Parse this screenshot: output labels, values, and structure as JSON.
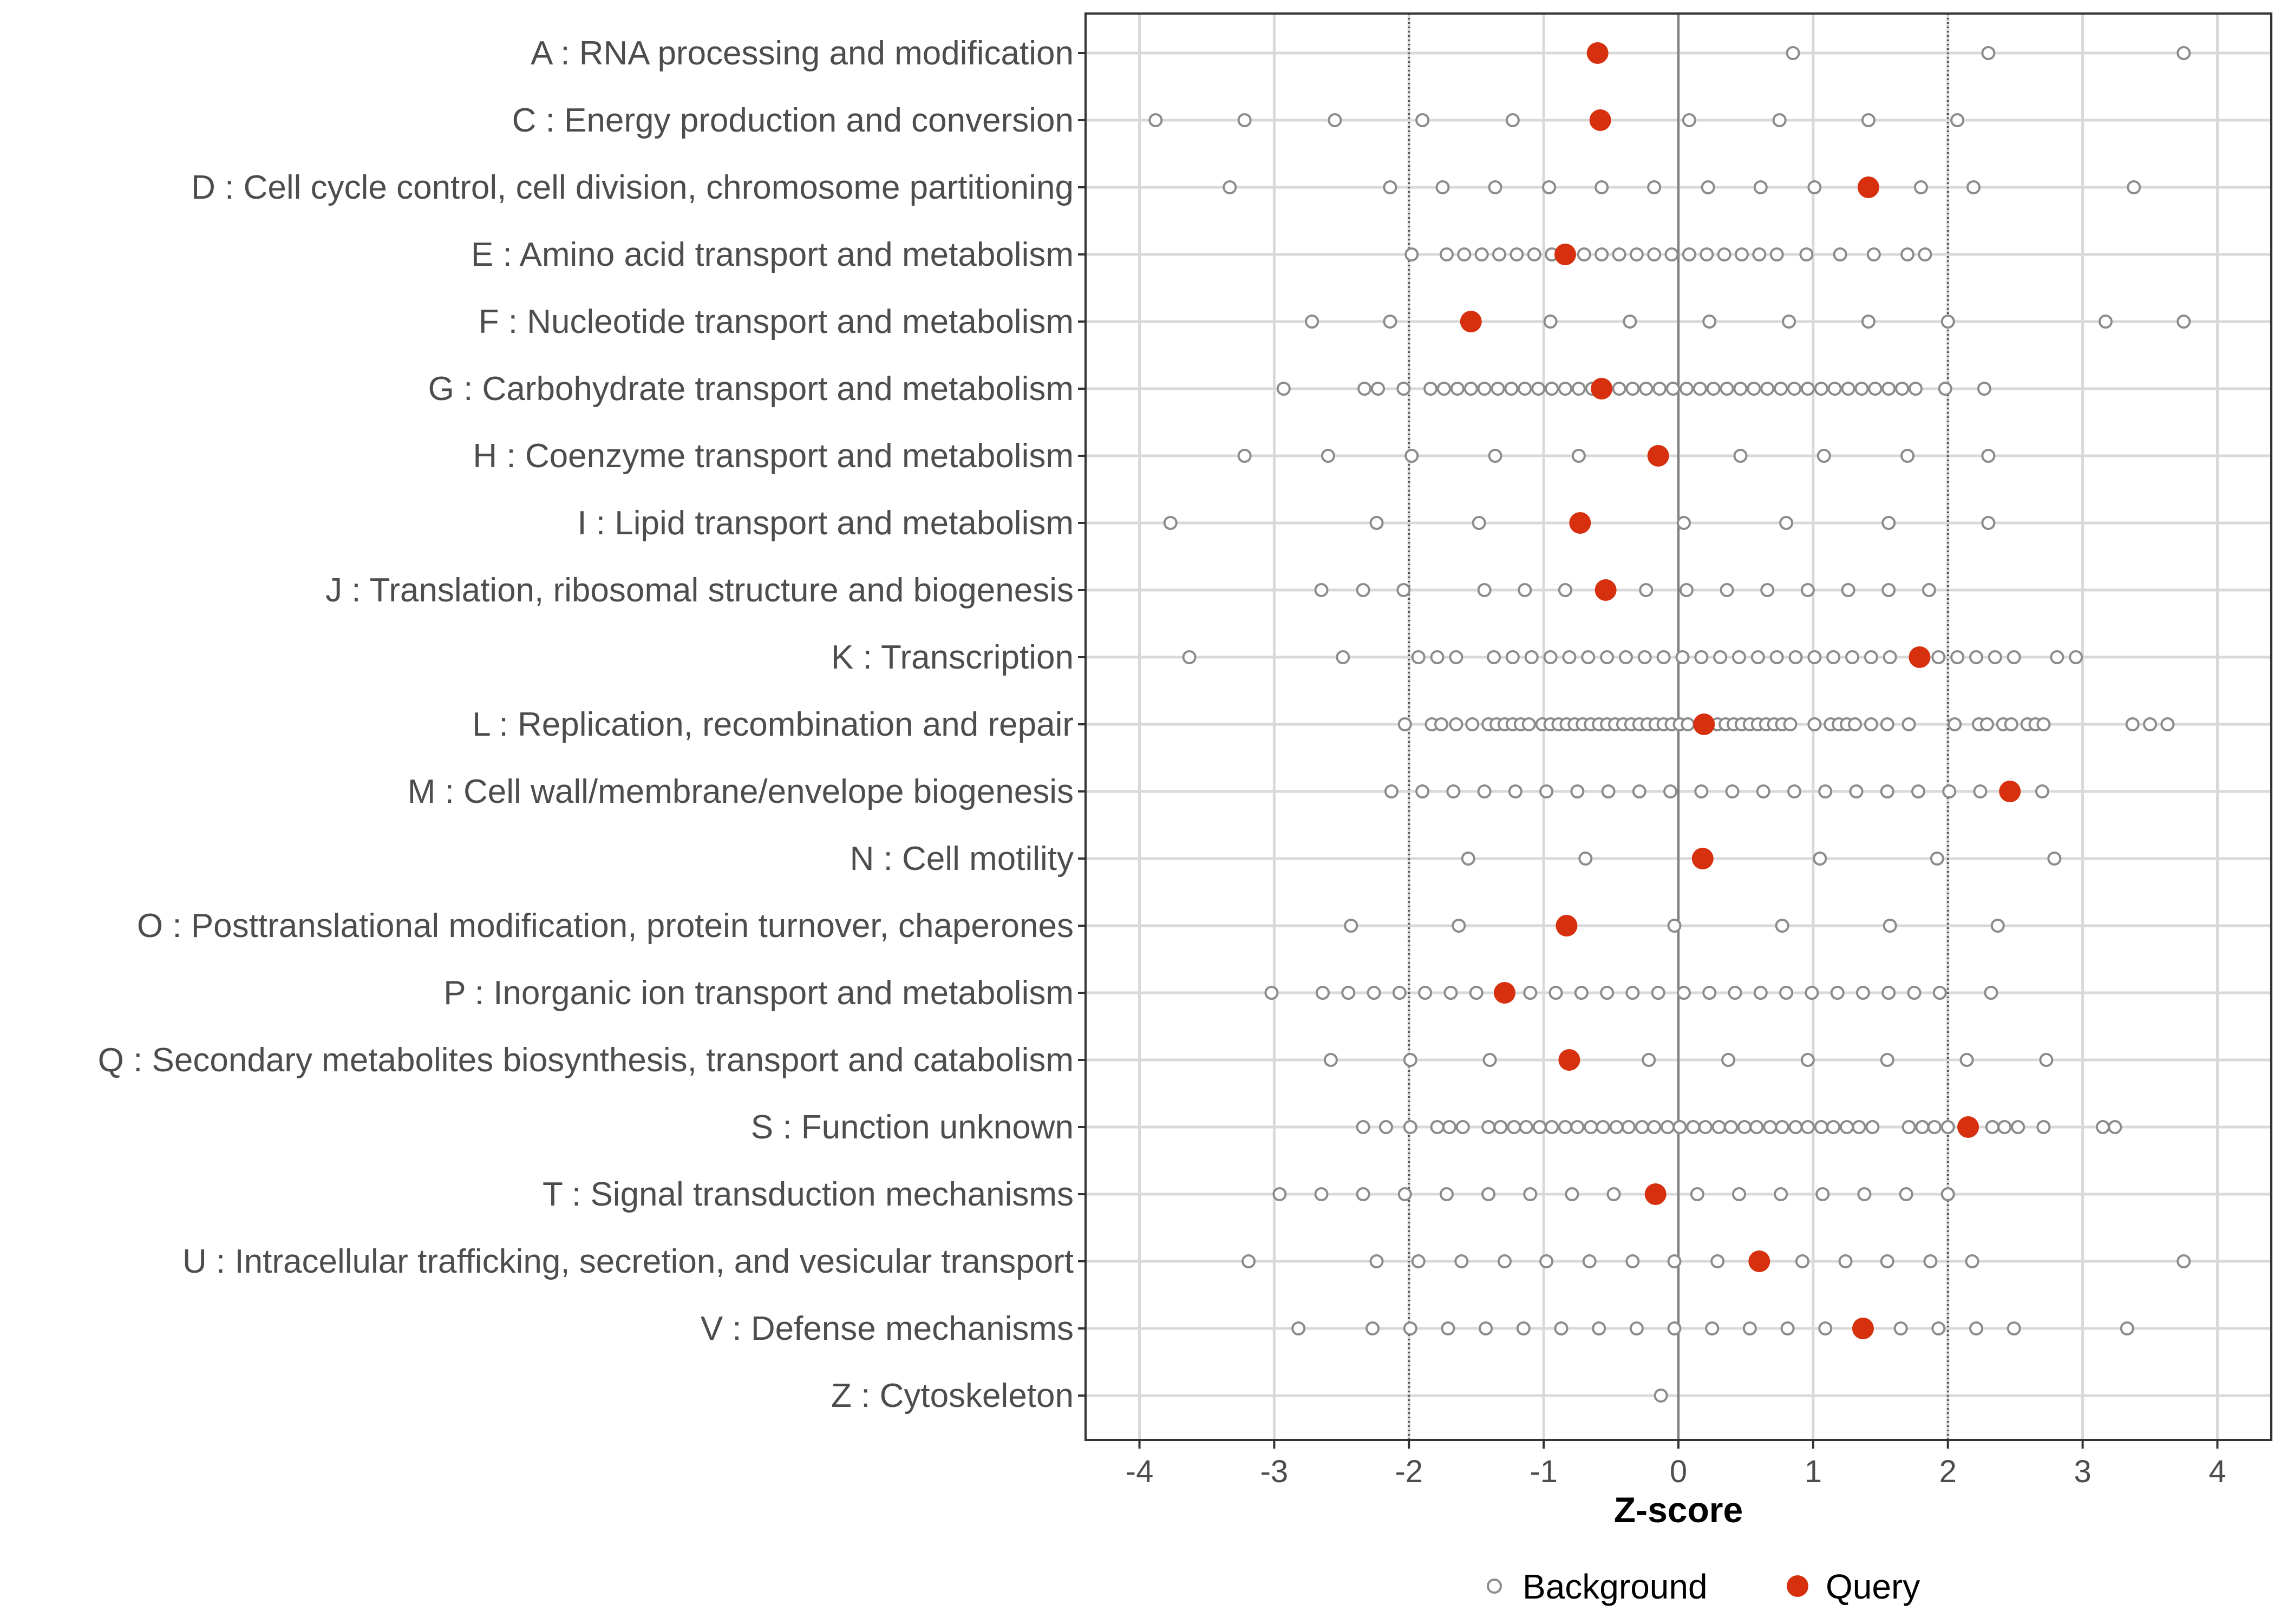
{
  "colors": {
    "background_point": "#8c8c8c",
    "query_point": "#d7300f",
    "grid": "#d9d9d9",
    "panel_border": "#333333",
    "zero_line": "#7f7f7f",
    "threshold_line": "#555555"
  },
  "chart_data": {
    "type": "scatter",
    "title": "",
    "xlabel": "Z-score",
    "ylabel": "",
    "xlim": [
      -4.4,
      4.4
    ],
    "x_ticks": [
      -4,
      -3,
      -2,
      -1,
      0,
      1,
      2,
      3,
      4
    ],
    "x_tick_labels": [
      "-4",
      "-3",
      "-2",
      "-1",
      "0",
      "1",
      "2",
      "3",
      "4"
    ],
    "reference_lines": {
      "solid": [
        0
      ],
      "dotted": [
        -2,
        2
      ]
    },
    "grid": true,
    "legend": {
      "position": "bottom",
      "entries": [
        {
          "name": "Background",
          "marker": "open-circle"
        },
        {
          "name": "Query",
          "marker": "filled-circle"
        }
      ]
    },
    "categories": [
      {
        "label": "A : RNA processing and modification",
        "query": -0.6,
        "background": [
          0.85,
          2.3,
          3.75
        ]
      },
      {
        "label": "C : Energy production and conversion",
        "query": -0.58,
        "background": [
          -3.88,
          -3.22,
          -2.55,
          -1.9,
          -1.23,
          0.08,
          0.75,
          1.41,
          2.07
        ]
      },
      {
        "label": "D : Cell cycle control, cell division, chromosome partitioning",
        "query": 1.41,
        "background": [
          -3.33,
          -2.14,
          -1.75,
          -1.36,
          -0.96,
          -0.57,
          -0.18,
          0.22,
          0.61,
          1.01,
          1.8,
          2.19,
          3.38
        ]
      },
      {
        "label": "E : Amino acid transport and metabolism",
        "query": -0.84,
        "background": [
          -1.98,
          -1.72,
          -1.59,
          -1.46,
          -1.33,
          -1.2,
          -1.07,
          -0.94,
          -0.7,
          -0.57,
          -0.44,
          -0.31,
          -0.18,
          -0.05,
          0.08,
          0.21,
          0.34,
          0.47,
          0.6,
          0.73,
          0.95,
          1.2,
          1.45,
          1.7,
          1.83
        ]
      },
      {
        "label": "F : Nucleotide transport and metabolism",
        "query": -1.54,
        "background": [
          -2.72,
          -2.14,
          -0.95,
          -0.36,
          0.23,
          0.82,
          1.41,
          2.0,
          3.17,
          3.75
        ]
      },
      {
        "label": "G : Carbohydrate transport and metabolism",
        "query": -0.57,
        "background": [
          -2.93,
          -2.33,
          -2.23,
          -2.04,
          -1.84,
          -1.74,
          -1.64,
          -1.54,
          -1.44,
          -1.34,
          -1.24,
          -1.14,
          -1.04,
          -0.94,
          -0.84,
          -0.74,
          -0.64,
          -0.44,
          -0.34,
          -0.24,
          -0.14,
          -0.04,
          0.06,
          0.16,
          0.26,
          0.36,
          0.46,
          0.56,
          0.66,
          0.76,
          0.86,
          0.96,
          1.06,
          1.16,
          1.26,
          1.36,
          1.46,
          1.56,
          1.66,
          1.76,
          1.98,
          2.27
        ]
      },
      {
        "label": "H : Coenzyme transport and metabolism",
        "query": -0.15,
        "background": [
          -3.22,
          -2.6,
          -1.98,
          -1.36,
          -0.74,
          0.46,
          1.08,
          1.7,
          2.3
        ]
      },
      {
        "label": "I : Lipid transport and metabolism",
        "query": -0.73,
        "background": [
          -3.77,
          -2.24,
          -1.48,
          0.04,
          0.8,
          1.56,
          2.3
        ]
      },
      {
        "label": "J : Translation, ribosomal structure and biogenesis",
        "query": -0.54,
        "background": [
          -2.65,
          -2.34,
          -2.04,
          -1.44,
          -1.14,
          -0.84,
          -0.24,
          0.06,
          0.36,
          0.66,
          0.96,
          1.26,
          1.56,
          1.86
        ]
      },
      {
        "label": "K : Transcription",
        "query": 1.79,
        "background": [
          -3.63,
          -2.49,
          -1.93,
          -1.79,
          -1.65,
          -1.37,
          -1.23,
          -1.09,
          -0.95,
          -0.81,
          -0.67,
          -0.53,
          -0.39,
          -0.25,
          -0.11,
          0.03,
          0.17,
          0.31,
          0.45,
          0.59,
          0.73,
          0.87,
          1.01,
          1.15,
          1.29,
          1.43,
          1.57,
          1.93,
          2.07,
          2.21,
          2.35,
          2.49,
          2.81,
          2.95
        ]
      },
      {
        "label": "L : Replication, recombination and repair",
        "query": 0.19,
        "background": [
          -2.03,
          -1.83,
          -1.76,
          -1.65,
          -1.53,
          -1.41,
          -1.35,
          -1.29,
          -1.23,
          -1.17,
          -1.11,
          -1.01,
          -0.95,
          -0.89,
          -0.83,
          -0.77,
          -0.71,
          -0.65,
          -0.59,
          -0.53,
          -0.47,
          -0.41,
          -0.35,
          -0.29,
          -0.23,
          -0.17,
          -0.11,
          -0.05,
          0.01,
          0.07,
          0.29,
          0.35,
          0.41,
          0.47,
          0.53,
          0.59,
          0.65,
          0.71,
          0.77,
          0.83,
          1.01,
          1.13,
          1.19,
          1.25,
          1.31,
          1.43,
          1.55,
          1.71,
          2.05,
          2.23,
          2.29,
          2.41,
          2.47,
          2.59,
          2.65,
          2.71,
          3.37,
          3.5,
          3.63
        ]
      },
      {
        "label": "M : Cell wall/membrane/envelope biogenesis",
        "query": 2.46,
        "background": [
          -2.13,
          -1.9,
          -1.67,
          -1.44,
          -1.21,
          -0.98,
          -0.75,
          -0.52,
          -0.29,
          -0.06,
          0.17,
          0.4,
          0.63,
          0.86,
          1.09,
          1.32,
          1.55,
          1.78,
          2.01,
          2.24,
          2.7
        ]
      },
      {
        "label": "N : Cell motility",
        "query": 0.18,
        "background": [
          -1.56,
          -0.69,
          1.05,
          1.92,
          2.79
        ]
      },
      {
        "label": "O : Posttranslational modification, protein turnover, chaperones",
        "query": -0.83,
        "background": [
          -2.43,
          -1.63,
          -0.03,
          0.77,
          1.57,
          2.37
        ]
      },
      {
        "label": "P : Inorganic ion transport and metabolism",
        "query": -1.29,
        "background": [
          -3.02,
          -2.64,
          -2.45,
          -2.26,
          -2.07,
          -1.88,
          -1.69,
          -1.5,
          -1.1,
          -0.91,
          -0.72,
          -0.53,
          -0.34,
          -0.15,
          0.04,
          0.23,
          0.42,
          0.61,
          0.8,
          0.99,
          1.18,
          1.37,
          1.56,
          1.75,
          1.94,
          2.32
        ]
      },
      {
        "label": "Q : Secondary metabolites biosynthesis, transport and catabolism",
        "query": -0.81,
        "background": [
          -2.58,
          -1.99,
          -1.4,
          -0.22,
          0.37,
          0.96,
          1.55,
          2.14,
          2.73
        ]
      },
      {
        "label": "S : Function unknown",
        "query": 2.15,
        "background": [
          -2.34,
          -2.17,
          -1.99,
          -1.79,
          -1.7,
          -1.6,
          -1.41,
          -1.32,
          -1.22,
          -1.13,
          -1.03,
          -0.94,
          -0.84,
          -0.75,
          -0.65,
          -0.56,
          -0.46,
          -0.37,
          -0.27,
          -0.18,
          -0.08,
          0.01,
          0.11,
          0.2,
          0.3,
          0.39,
          0.49,
          0.58,
          0.68,
          0.77,
          0.87,
          0.96,
          1.06,
          1.15,
          1.25,
          1.34,
          1.44,
          1.71,
          1.81,
          1.9,
          2.0,
          2.33,
          2.42,
          2.52,
          2.71,
          3.15,
          3.24
        ]
      },
      {
        "label": "T : Signal transduction mechanisms",
        "query": -0.17,
        "background": [
          -2.96,
          -2.65,
          -2.34,
          -2.03,
          -1.72,
          -1.41,
          -1.1,
          -0.79,
          -0.48,
          0.14,
          0.45,
          0.76,
          1.07,
          1.38,
          1.69,
          2.0
        ]
      },
      {
        "label": "U : Intracellular trafficking, secretion, and vesicular transport",
        "query": 0.6,
        "background": [
          -3.19,
          -2.24,
          -1.93,
          -1.61,
          -1.29,
          -0.98,
          -0.66,
          -0.34,
          -0.03,
          0.29,
          0.92,
          1.24,
          1.55,
          1.87,
          2.18,
          3.75
        ]
      },
      {
        "label": "V : Defense mechanisms",
        "query": 1.37,
        "background": [
          -2.82,
          -2.27,
          -1.99,
          -1.71,
          -1.43,
          -1.15,
          -0.87,
          -0.59,
          -0.31,
          -0.03,
          0.25,
          0.53,
          0.81,
          1.09,
          1.65,
          1.93,
          2.21,
          2.49,
          3.33
        ]
      },
      {
        "label": "Z : Cytoskeleton",
        "query": null,
        "background": [
          -0.13
        ]
      }
    ]
  }
}
